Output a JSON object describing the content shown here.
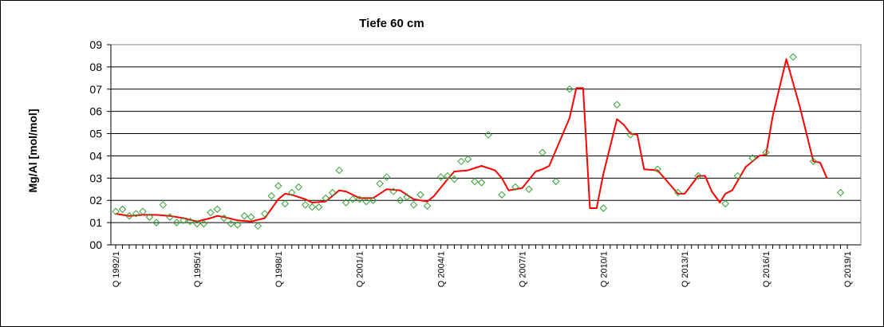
{
  "chart_data": {
    "type": "line",
    "title": "Tiefe  60 cm",
    "ylabel": "Mg/Al [mol/mol]",
    "xlabel": "",
    "ylim": [
      0,
      9
    ],
    "y_tick_labels": [
      "00",
      "01",
      "02",
      "03",
      "04",
      "05",
      "06",
      "07",
      "08",
      "09"
    ],
    "x_tick_labels": [
      "Q 1992/1",
      "Q 1995/1",
      "Q 1998/1",
      "Q 2001/1",
      "Q 2004/1",
      "Q 2007/1",
      "Q 2010/1",
      "Q 2013/1",
      "Q 2016/1",
      "Q 2019/1"
    ],
    "x_range": [
      1992.0,
      2019.0
    ],
    "grid": "horizontal",
    "legend": "none",
    "colors": {
      "line": "#ff0000",
      "markers": "#33a033"
    },
    "series": [
      {
        "type": "scatter",
        "marker": "diamond",
        "points": [
          [
            1992.0,
            1.5
          ],
          [
            1992.25,
            1.6
          ],
          [
            1992.5,
            1.3
          ],
          [
            1992.75,
            1.4
          ],
          [
            1993.0,
            1.5
          ],
          [
            1993.25,
            1.25
          ],
          [
            1993.5,
            1.0
          ],
          [
            1993.75,
            1.8
          ],
          [
            1994.0,
            1.25
          ],
          [
            1994.25,
            1.0
          ],
          [
            1994.5,
            1.1
          ],
          [
            1994.75,
            1.05
          ],
          [
            1995.0,
            0.95
          ],
          [
            1995.25,
            0.95
          ],
          [
            1995.5,
            1.45
          ],
          [
            1995.75,
            1.6
          ],
          [
            1996.0,
            1.2
          ],
          [
            1996.25,
            0.95
          ],
          [
            1996.5,
            0.9
          ],
          [
            1996.75,
            1.3
          ],
          [
            1997.0,
            1.25
          ],
          [
            1997.25,
            0.85
          ],
          [
            1997.5,
            1.4
          ],
          [
            1997.75,
            2.2
          ],
          [
            1998.0,
            2.65
          ],
          [
            1998.25,
            1.85
          ],
          [
            1998.5,
            2.35
          ],
          [
            1998.75,
            2.6
          ],
          [
            1999.0,
            1.8
          ],
          [
            1999.25,
            1.7
          ],
          [
            1999.5,
            1.7
          ],
          [
            1999.75,
            2.1
          ],
          [
            2000.0,
            2.35
          ],
          [
            2000.25,
            3.35
          ],
          [
            2000.5,
            1.9
          ],
          [
            2000.75,
            2.05
          ],
          [
            2001.0,
            2.05
          ],
          [
            2001.25,
            1.95
          ],
          [
            2001.5,
            2.0
          ],
          [
            2001.75,
            2.75
          ],
          [
            2002.0,
            3.05
          ],
          [
            2002.25,
            2.4
          ],
          [
            2002.5,
            2.0
          ],
          [
            2002.75,
            2.15
          ],
          [
            2003.0,
            1.8
          ],
          [
            2003.25,
            2.25
          ],
          [
            2003.5,
            1.75
          ],
          [
            2004.0,
            3.05
          ],
          [
            2004.25,
            3.1
          ],
          [
            2004.5,
            2.95
          ],
          [
            2004.75,
            3.75
          ],
          [
            2005.0,
            3.85
          ],
          [
            2005.25,
            2.85
          ],
          [
            2005.5,
            2.8
          ],
          [
            2005.75,
            4.95
          ],
          [
            2006.25,
            2.25
          ],
          [
            2006.75,
            2.6
          ],
          [
            2007.25,
            2.5
          ],
          [
            2007.75,
            4.15
          ],
          [
            2008.25,
            2.85
          ],
          [
            2008.75,
            7.0
          ],
          [
            2010.0,
            1.65
          ],
          [
            2010.5,
            6.3
          ],
          [
            2011.0,
            4.95
          ],
          [
            2012.0,
            3.4
          ],
          [
            2012.75,
            2.35
          ],
          [
            2013.5,
            3.1
          ],
          [
            2014.5,
            1.85
          ],
          [
            2014.95,
            3.1
          ],
          [
            2015.5,
            3.9
          ],
          [
            2016.0,
            4.15
          ],
          [
            2017.0,
            8.45
          ],
          [
            2017.75,
            3.75
          ],
          [
            2018.75,
            2.35
          ]
        ]
      },
      {
        "type": "line",
        "points": [
          [
            1992.0,
            1.4
          ],
          [
            1992.5,
            1.3
          ],
          [
            1993.0,
            1.35
          ],
          [
            1993.5,
            1.35
          ],
          [
            1994.0,
            1.3
          ],
          [
            1994.5,
            1.2
          ],
          [
            1995.0,
            1.05
          ],
          [
            1995.5,
            1.2
          ],
          [
            1995.75,
            1.3
          ],
          [
            1996.0,
            1.25
          ],
          [
            1996.5,
            1.1
          ],
          [
            1997.0,
            1.05
          ],
          [
            1997.5,
            1.2
          ],
          [
            1998.0,
            2.05
          ],
          [
            1998.25,
            2.3
          ],
          [
            1998.5,
            2.25
          ],
          [
            1999.0,
            2.05
          ],
          [
            1999.25,
            1.9
          ],
          [
            1999.75,
            1.95
          ],
          [
            2000.25,
            2.45
          ],
          [
            2000.5,
            2.4
          ],
          [
            2001.0,
            2.1
          ],
          [
            2001.5,
            2.1
          ],
          [
            2002.0,
            2.5
          ],
          [
            2002.5,
            2.45
          ],
          [
            2003.0,
            2.05
          ],
          [
            2003.5,
            1.95
          ],
          [
            2003.75,
            2.2
          ],
          [
            2004.25,
            2.95
          ],
          [
            2004.5,
            3.3
          ],
          [
            2005.0,
            3.35
          ],
          [
            2005.5,
            3.55
          ],
          [
            2006.0,
            3.35
          ],
          [
            2006.25,
            3.0
          ],
          [
            2006.5,
            2.45
          ],
          [
            2007.0,
            2.55
          ],
          [
            2007.5,
            3.3
          ],
          [
            2007.75,
            3.4
          ],
          [
            2008.0,
            3.55
          ],
          [
            2008.75,
            5.7
          ],
          [
            2009.0,
            7.05
          ],
          [
            2009.25,
            7.05
          ],
          [
            2009.5,
            1.65
          ],
          [
            2009.75,
            1.65
          ],
          [
            2010.0,
            3.2
          ],
          [
            2010.5,
            5.65
          ],
          [
            2010.75,
            5.4
          ],
          [
            2011.0,
            5.0
          ],
          [
            2011.25,
            4.95
          ],
          [
            2011.5,
            3.4
          ],
          [
            2012.0,
            3.35
          ],
          [
            2012.5,
            2.65
          ],
          [
            2012.75,
            2.3
          ],
          [
            2013.0,
            2.3
          ],
          [
            2013.5,
            3.1
          ],
          [
            2013.75,
            3.1
          ],
          [
            2014.0,
            2.4
          ],
          [
            2014.3,
            1.9
          ],
          [
            2014.5,
            2.3
          ],
          [
            2014.75,
            2.45
          ],
          [
            2015.25,
            3.5
          ],
          [
            2015.75,
            4.0
          ],
          [
            2016.0,
            4.05
          ],
          [
            2016.25,
            5.8
          ],
          [
            2016.75,
            8.35
          ],
          [
            2017.25,
            6.2
          ],
          [
            2017.75,
            3.75
          ],
          [
            2018.0,
            3.7
          ],
          [
            2018.25,
            3.0
          ]
        ]
      }
    ]
  }
}
